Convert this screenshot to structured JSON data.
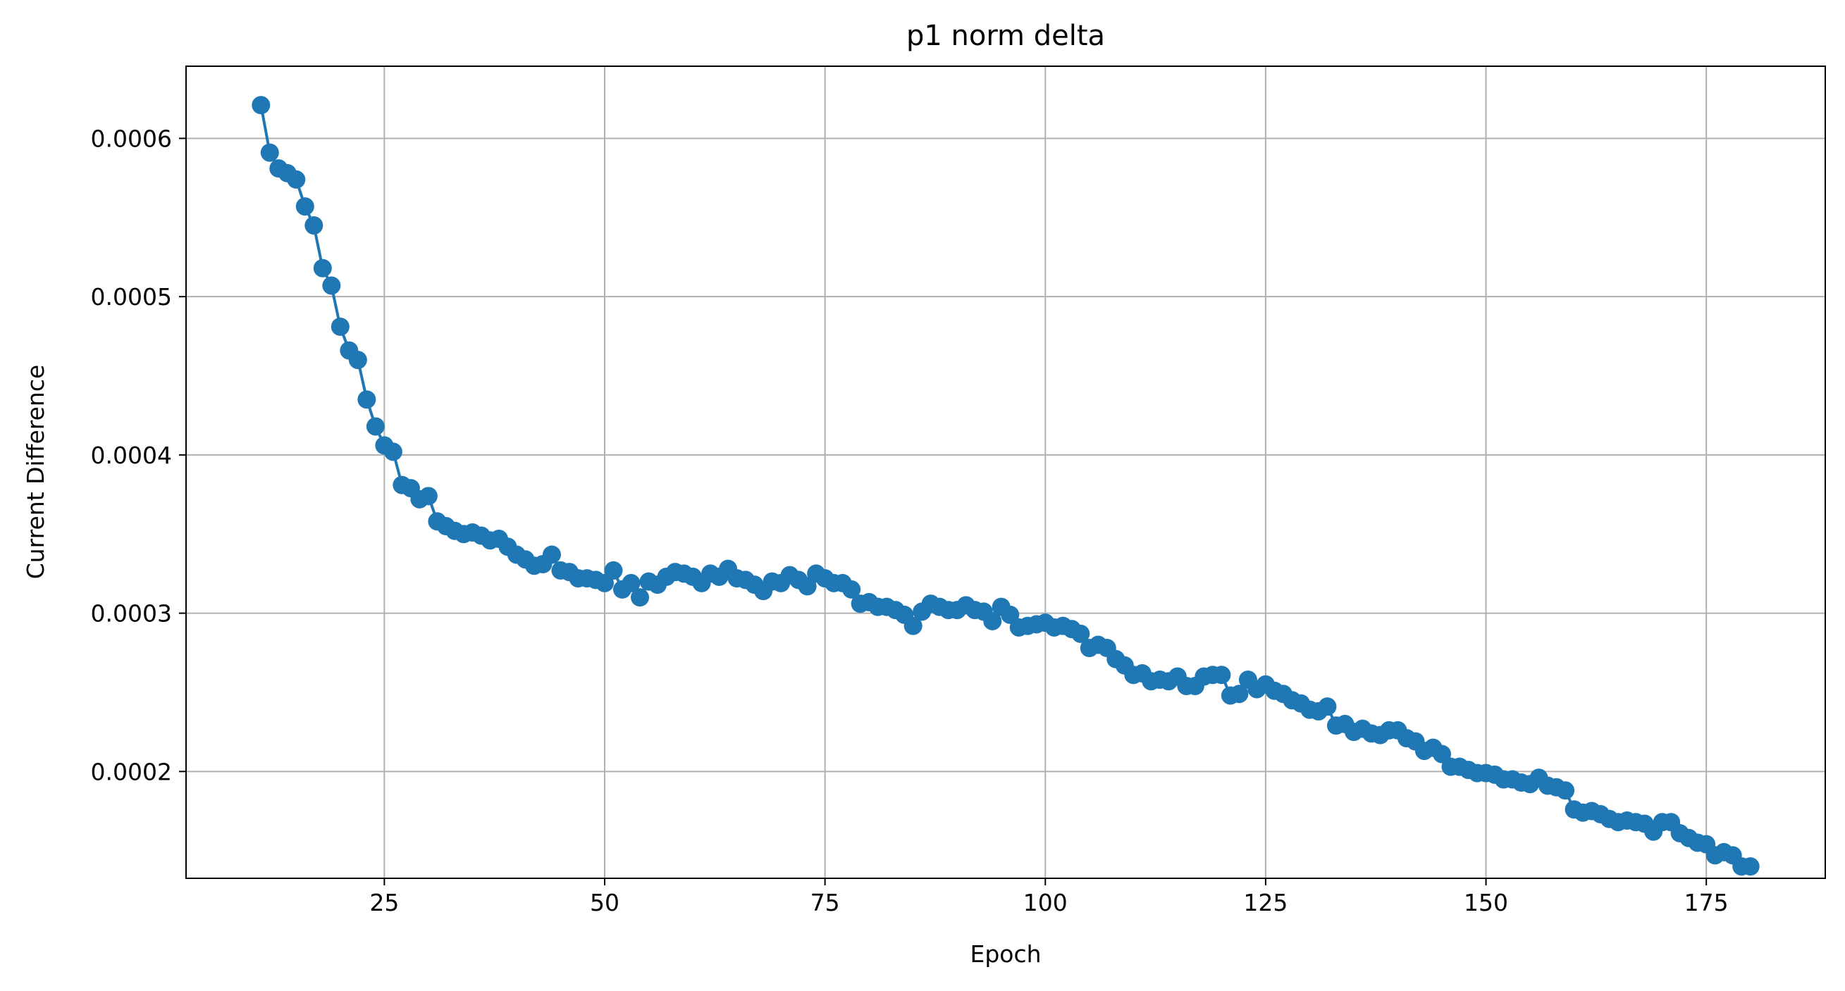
{
  "chart_data": {
    "type": "line",
    "title": "p1 norm delta",
    "xlabel": "Epoch",
    "ylabel": "Current Difference",
    "xlim": [
      2.5,
      188.5
    ],
    "ylim": [
      0.0001325,
      0.0006456
    ],
    "xticks": [
      25,
      50,
      75,
      100,
      125,
      150,
      175
    ],
    "xtick_labels": [
      "25",
      "50",
      "75",
      "100",
      "125",
      "150",
      "175"
    ],
    "yticks": [
      0.0002,
      0.0003,
      0.0004,
      0.0005,
      0.0006
    ],
    "ytick_labels": [
      "0.0002",
      "0.0003",
      "0.0004",
      "0.0005",
      "0.0006"
    ],
    "grid": true,
    "marker": "circle",
    "colors": {
      "series": "#1f77b4",
      "grid": "#b0b0b0",
      "axes": "#000000"
    },
    "x": [
      11,
      12,
      13,
      14,
      15,
      16,
      17,
      18,
      19,
      20,
      21,
      22,
      23,
      24,
      25,
      26,
      27,
      28,
      29,
      30,
      31,
      32,
      33,
      34,
      35,
      36,
      37,
      38,
      39,
      40,
      41,
      42,
      43,
      44,
      45,
      46,
      47,
      48,
      49,
      50,
      51,
      52,
      53,
      54,
      55,
      56,
      57,
      58,
      59,
      60,
      61,
      62,
      63,
      64,
      65,
      66,
      67,
      68,
      69,
      70,
      71,
      72,
      73,
      74,
      75,
      76,
      77,
      78,
      79,
      80,
      81,
      82,
      83,
      84,
      85,
      86,
      87,
      88,
      89,
      90,
      91,
      92,
      93,
      94,
      95,
      96,
      97,
      98,
      99,
      100,
      101,
      102,
      103,
      104,
      105,
      106,
      107,
      108,
      109,
      110,
      111,
      112,
      113,
      114,
      115,
      116,
      117,
      118,
      119,
      120,
      121,
      122,
      123,
      124,
      125,
      126,
      127,
      128,
      129,
      130,
      131,
      132,
      133,
      134,
      135,
      136,
      137,
      138,
      139,
      140,
      141,
      142,
      143,
      144,
      145,
      146,
      147,
      148,
      149,
      150,
      151,
      152,
      153,
      154,
      155,
      156,
      157,
      158,
      159,
      160,
      161,
      162,
      163,
      164,
      165,
      166,
      167,
      168,
      169,
      170,
      171,
      172,
      173,
      174,
      175,
      176,
      177,
      178,
      179,
      180
    ],
    "y": [
      0.000621,
      0.000591,
      0.000581,
      0.000578,
      0.000574,
      0.000557,
      0.000545,
      0.000518,
      0.000507,
      0.000481,
      0.000466,
      0.00046,
      0.000435,
      0.000418,
      0.000406,
      0.000402,
      0.000381,
      0.000379,
      0.000372,
      0.000374,
      0.000358,
      0.000355,
      0.000352,
      0.00035,
      0.000351,
      0.000349,
      0.000346,
      0.000347,
      0.000342,
      0.000337,
      0.000334,
      0.00033,
      0.000331,
      0.000337,
      0.000327,
      0.000326,
      0.000322,
      0.000322,
      0.000321,
      0.000319,
      0.000327,
      0.000315,
      0.000319,
      0.00031,
      0.00032,
      0.000318,
      0.000323,
      0.000326,
      0.000325,
      0.000323,
      0.000319,
      0.000325,
      0.000323,
      0.000328,
      0.000322,
      0.000321,
      0.000318,
      0.000314,
      0.00032,
      0.000319,
      0.000324,
      0.000321,
      0.000317,
      0.000325,
      0.000322,
      0.000319,
      0.000319,
      0.000315,
      0.000306,
      0.000307,
      0.000304,
      0.000304,
      0.000302,
      0.000299,
      0.000292,
      0.000301,
      0.000306,
      0.000304,
      0.000302,
      0.000302,
      0.000305,
      0.000302,
      0.000301,
      0.000295,
      0.000304,
      0.000299,
      0.000291,
      0.000292,
      0.000293,
      0.000294,
      0.000291,
      0.000292,
      0.00029,
      0.000287,
      0.000278,
      0.00028,
      0.000278,
      0.000271,
      0.000267,
      0.000261,
      0.000262,
      0.000257,
      0.000258,
      0.000257,
      0.00026,
      0.000254,
      0.000254,
      0.00026,
      0.000261,
      0.000261,
      0.000248,
      0.000249,
      0.000258,
      0.000252,
      0.000255,
      0.000251,
      0.000249,
      0.000245,
      0.000243,
      0.000239,
      0.000238,
      0.000241,
      0.000229,
      0.00023,
      0.000225,
      0.000227,
      0.000224,
      0.000223,
      0.000226,
      0.000226,
      0.000221,
      0.000219,
      0.000213,
      0.000215,
      0.000211,
      0.000203,
      0.000203,
      0.000201,
      0.000199,
      0.000199,
      0.000198,
      0.000195,
      0.000195,
      0.000193,
      0.000192,
      0.000196,
      0.000191,
      0.00019,
      0.000188,
      0.000176,
      0.000174,
      0.000175,
      0.000173,
      0.00017,
      0.000168,
      0.000169,
      0.000168,
      0.000167,
      0.000162,
      0.000168,
      0.000168,
      0.000161,
      0.000158,
      0.000155,
      0.000154,
      0.000147,
      0.000149,
      0.000147,
      0.00014,
      0.00014
    ]
  }
}
